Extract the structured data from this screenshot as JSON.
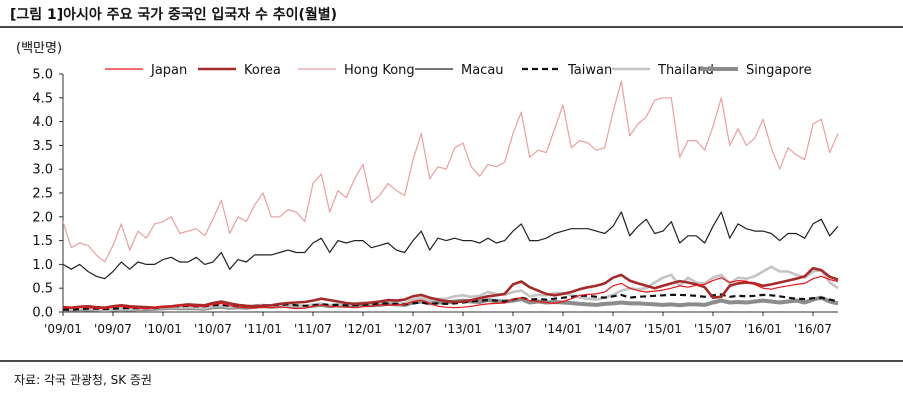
{
  "title": "[그림 1]아시아 주요 국가 중국인 입국자 수 추이(월별)",
  "unit_label": "(백만명)",
  "source": "자료: 각국 관광청, SK 증권",
  "chart_data": {
    "type": "line",
    "title": "[그림 1]아시아 주요 국가 중국인 입국자 수 추이(월별)",
    "ylabel": "(백만명)",
    "xlabel": "",
    "ylim": [
      0,
      5
    ],
    "y_ticks": [
      "0.0",
      "0.5",
      "1.0",
      "1.5",
      "2.0",
      "2.5",
      "3.0",
      "3.5",
      "4.0",
      "4.5",
      "5.0"
    ],
    "x_start": "2009-01",
    "x_end": "2016-10",
    "x_tick_labels": [
      "'09/01",
      "'09/07",
      "'10/01",
      "'10/07",
      "'11/01",
      "'11/07",
      "'12/01",
      "'12/07",
      "'13/01",
      "'13/07",
      "'14/01",
      "'14/07",
      "'15/01",
      "'15/07",
      "'16/01",
      "'16/07"
    ],
    "grid": false,
    "legend_position": "top",
    "series": [
      {
        "name": "Japan",
        "color": "#e8161b",
        "style": "solid",
        "values": [
          0.09,
          0.08,
          0.1,
          0.09,
          0.08,
          0.07,
          0.11,
          0.12,
          0.09,
          0.08,
          0.07,
          0.08,
          0.12,
          0.1,
          0.14,
          0.13,
          0.12,
          0.12,
          0.16,
          0.18,
          0.14,
          0.1,
          0.09,
          0.08,
          0.1,
          0.09,
          0.11,
          0.09,
          0.07,
          0.08,
          0.12,
          0.15,
          0.12,
          0.11,
          0.1,
          0.09,
          0.11,
          0.12,
          0.15,
          0.14,
          0.15,
          0.16,
          0.22,
          0.25,
          0.18,
          0.12,
          0.1,
          0.09,
          0.1,
          0.12,
          0.15,
          0.17,
          0.18,
          0.19,
          0.26,
          0.3,
          0.24,
          0.22,
          0.2,
          0.18,
          0.22,
          0.28,
          0.35,
          0.37,
          0.38,
          0.42,
          0.55,
          0.6,
          0.5,
          0.45,
          0.42,
          0.44,
          0.46,
          0.5,
          0.55,
          0.52,
          0.56,
          0.58,
          0.66,
          0.72,
          0.62,
          0.66,
          0.65,
          0.58,
          0.5,
          0.48,
          0.52,
          0.55,
          0.58,
          0.6,
          0.7,
          0.75,
          0.68,
          0.64
        ]
      },
      {
        "name": "Korea",
        "color": "#a52a2a",
        "style": "solid-thick",
        "values": [
          0.1,
          0.09,
          0.11,
          0.12,
          0.1,
          0.09,
          0.12,
          0.14,
          0.12,
          0.11,
          0.1,
          0.09,
          0.11,
          0.12,
          0.14,
          0.16,
          0.15,
          0.14,
          0.19,
          0.22,
          0.18,
          0.15,
          0.13,
          0.12,
          0.13,
          0.14,
          0.17,
          0.19,
          0.2,
          0.21,
          0.24,
          0.28,
          0.25,
          0.22,
          0.19,
          0.17,
          0.18,
          0.2,
          0.22,
          0.25,
          0.24,
          0.26,
          0.33,
          0.36,
          0.3,
          0.26,
          0.23,
          0.21,
          0.22,
          0.25,
          0.29,
          0.33,
          0.35,
          0.38,
          0.58,
          0.64,
          0.52,
          0.45,
          0.38,
          0.35,
          0.38,
          0.42,
          0.48,
          0.52,
          0.55,
          0.6,
          0.72,
          0.78,
          0.66,
          0.6,
          0.55,
          0.5,
          0.55,
          0.6,
          0.65,
          0.62,
          0.58,
          0.52,
          0.3,
          0.32,
          0.55,
          0.6,
          0.62,
          0.6,
          0.55,
          0.58,
          0.62,
          0.66,
          0.7,
          0.75,
          0.92,
          0.88,
          0.74,
          0.68
        ]
      },
      {
        "name": "Hong Kong",
        "color": "#e8a0a0",
        "style": "solid",
        "values": [
          1.9,
          1.35,
          1.45,
          1.4,
          1.2,
          1.05,
          1.4,
          1.85,
          1.3,
          1.7,
          1.55,
          1.85,
          1.9,
          2.0,
          1.65,
          1.7,
          1.75,
          1.6,
          1.95,
          2.35,
          1.65,
          2.0,
          1.9,
          2.25,
          2.5,
          2.0,
          2.0,
          2.15,
          2.1,
          1.9,
          2.7,
          2.9,
          2.1,
          2.55,
          2.4,
          2.8,
          3.1,
          2.3,
          2.45,
          2.7,
          2.55,
          2.45,
          3.2,
          3.75,
          2.8,
          3.05,
          3.0,
          3.45,
          3.55,
          3.05,
          2.85,
          3.1,
          3.05,
          3.15,
          3.75,
          4.2,
          3.25,
          3.4,
          3.35,
          3.85,
          4.35,
          3.45,
          3.6,
          3.55,
          3.4,
          3.45,
          4.2,
          4.85,
          3.7,
          3.95,
          4.1,
          4.45,
          4.5,
          4.5,
          3.25,
          3.6,
          3.6,
          3.4,
          3.9,
          4.5,
          3.5,
          3.85,
          3.5,
          3.65,
          4.05,
          3.45,
          3.0,
          3.45,
          3.3,
          3.2,
          3.95,
          4.05,
          3.35,
          3.75
        ]
      },
      {
        "name": "Macau",
        "color": "#222222",
        "style": "solid",
        "values": [
          1.0,
          0.9,
          1.0,
          0.85,
          0.75,
          0.7,
          0.85,
          1.05,
          0.9,
          1.05,
          1.0,
          1.0,
          1.1,
          1.15,
          1.05,
          1.05,
          1.15,
          1.0,
          1.05,
          1.25,
          0.9,
          1.1,
          1.05,
          1.2,
          1.2,
          1.2,
          1.25,
          1.3,
          1.25,
          1.25,
          1.45,
          1.55,
          1.25,
          1.5,
          1.45,
          1.5,
          1.5,
          1.35,
          1.4,
          1.45,
          1.3,
          1.25,
          1.5,
          1.7,
          1.3,
          1.55,
          1.5,
          1.55,
          1.5,
          1.5,
          1.45,
          1.55,
          1.45,
          1.5,
          1.7,
          1.85,
          1.5,
          1.5,
          1.55,
          1.65,
          1.7,
          1.75,
          1.75,
          1.75,
          1.7,
          1.65,
          1.8,
          2.1,
          1.6,
          1.8,
          1.95,
          1.65,
          1.7,
          1.9,
          1.45,
          1.6,
          1.6,
          1.45,
          1.8,
          2.1,
          1.55,
          1.85,
          1.75,
          1.7,
          1.7,
          1.65,
          1.5,
          1.65,
          1.65,
          1.55,
          1.85,
          1.95,
          1.6,
          1.8
        ]
      },
      {
        "name": "Taiwan",
        "color": "#111111",
        "style": "dashed",
        "values": [
          0.05,
          0.05,
          0.06,
          0.07,
          0.07,
          0.06,
          0.07,
          0.08,
          0.08,
          0.08,
          0.08,
          0.08,
          0.1,
          0.12,
          0.12,
          0.13,
          0.12,
          0.12,
          0.14,
          0.15,
          0.13,
          0.12,
          0.12,
          0.13,
          0.14,
          0.14,
          0.15,
          0.16,
          0.14,
          0.13,
          0.14,
          0.16,
          0.15,
          0.15,
          0.14,
          0.14,
          0.15,
          0.16,
          0.18,
          0.18,
          0.17,
          0.16,
          0.18,
          0.2,
          0.17,
          0.18,
          0.17,
          0.18,
          0.2,
          0.22,
          0.24,
          0.25,
          0.24,
          0.22,
          0.26,
          0.3,
          0.26,
          0.27,
          0.26,
          0.28,
          0.3,
          0.32,
          0.34,
          0.34,
          0.32,
          0.3,
          0.33,
          0.36,
          0.3,
          0.32,
          0.33,
          0.34,
          0.35,
          0.36,
          0.36,
          0.35,
          0.34,
          0.32,
          0.35,
          0.37,
          0.32,
          0.34,
          0.33,
          0.34,
          0.36,
          0.35,
          0.33,
          0.3,
          0.28,
          0.27,
          0.29,
          0.3,
          0.26,
          0.22
        ]
      },
      {
        "name": "Thailand",
        "color": "#c4c4c4",
        "style": "solid-thick",
        "values": [
          0.06,
          0.05,
          0.07,
          0.06,
          0.05,
          0.04,
          0.05,
          0.06,
          0.05,
          0.06,
          0.07,
          0.08,
          0.09,
          0.1,
          0.09,
          0.1,
          0.09,
          0.08,
          0.12,
          0.13,
          0.1,
          0.12,
          0.11,
          0.13,
          0.15,
          0.13,
          0.14,
          0.14,
          0.13,
          0.12,
          0.16,
          0.18,
          0.14,
          0.16,
          0.15,
          0.18,
          0.2,
          0.18,
          0.2,
          0.22,
          0.2,
          0.19,
          0.26,
          0.3,
          0.24,
          0.28,
          0.28,
          0.33,
          0.35,
          0.32,
          0.34,
          0.42,
          0.38,
          0.36,
          0.42,
          0.45,
          0.33,
          0.36,
          0.35,
          0.4,
          0.4,
          0.35,
          0.3,
          0.28,
          0.26,
          0.3,
          0.36,
          0.45,
          0.5,
          0.48,
          0.5,
          0.62,
          0.72,
          0.78,
          0.55,
          0.72,
          0.62,
          0.6,
          0.72,
          0.78,
          0.6,
          0.72,
          0.7,
          0.75,
          0.85,
          0.95,
          0.85,
          0.85,
          0.78,
          0.72,
          0.85,
          0.88,
          0.62,
          0.5
        ]
      },
      {
        "name": "Singapore",
        "color": "#8c8c8c",
        "style": "solid-thicker",
        "values": [
          0.06,
          0.05,
          0.06,
          0.05,
          0.05,
          0.04,
          0.05,
          0.06,
          0.05,
          0.06,
          0.06,
          0.07,
          0.08,
          0.09,
          0.08,
          0.08,
          0.08,
          0.07,
          0.1,
          0.11,
          0.09,
          0.1,
          0.09,
          0.11,
          0.12,
          0.11,
          0.12,
          0.13,
          0.12,
          0.11,
          0.13,
          0.15,
          0.12,
          0.14,
          0.13,
          0.15,
          0.16,
          0.14,
          0.15,
          0.17,
          0.16,
          0.15,
          0.2,
          0.22,
          0.18,
          0.2,
          0.2,
          0.22,
          0.24,
          0.22,
          0.21,
          0.25,
          0.23,
          0.22,
          0.24,
          0.27,
          0.2,
          0.22,
          0.2,
          0.21,
          0.2,
          0.19,
          0.17,
          0.16,
          0.15,
          0.17,
          0.18,
          0.2,
          0.18,
          0.18,
          0.17,
          0.16,
          0.15,
          0.16,
          0.14,
          0.16,
          0.16,
          0.15,
          0.2,
          0.24,
          0.2,
          0.21,
          0.2,
          0.22,
          0.24,
          0.22,
          0.2,
          0.22,
          0.24,
          0.2,
          0.26,
          0.3,
          0.22,
          0.18
        ]
      }
    ]
  }
}
